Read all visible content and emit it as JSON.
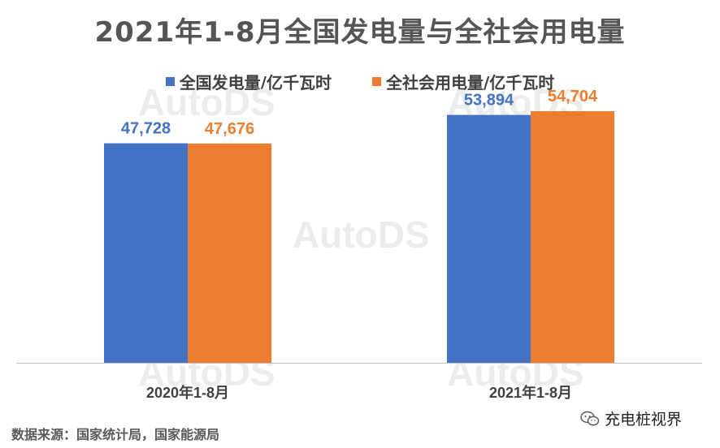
{
  "title": "2021年1-8月全国发电量与全社会用电量",
  "source_note": "数据来源：国家统计局，国家能源局",
  "brand": {
    "name": "充电桩视界",
    "icon": "wechat-icon"
  },
  "watermark": "AutoDS",
  "colors": {
    "series1": "#4472C4",
    "series2": "#ED7D31",
    "title": "#555555",
    "axis": "#BFBFBF"
  },
  "legend": {
    "position": "top",
    "items": [
      "全国发电量/亿千瓦时",
      "全社会用电量/亿千瓦时"
    ]
  },
  "chart_data": {
    "type": "bar",
    "categories": [
      "2020年1-8月",
      "2021年1-8月"
    ],
    "series": [
      {
        "name": "全国发电量/亿千瓦时",
        "values": [
          47728,
          53894
        ],
        "labels": [
          "47,728",
          "53,894"
        ]
      },
      {
        "name": "全社会用电量/亿千瓦时",
        "values": [
          47676,
          54704
        ],
        "labels": [
          "47,676",
          "54,704"
        ]
      }
    ],
    "ylim": [
      0,
      60000
    ],
    "grid": false,
    "data_labels": true
  }
}
